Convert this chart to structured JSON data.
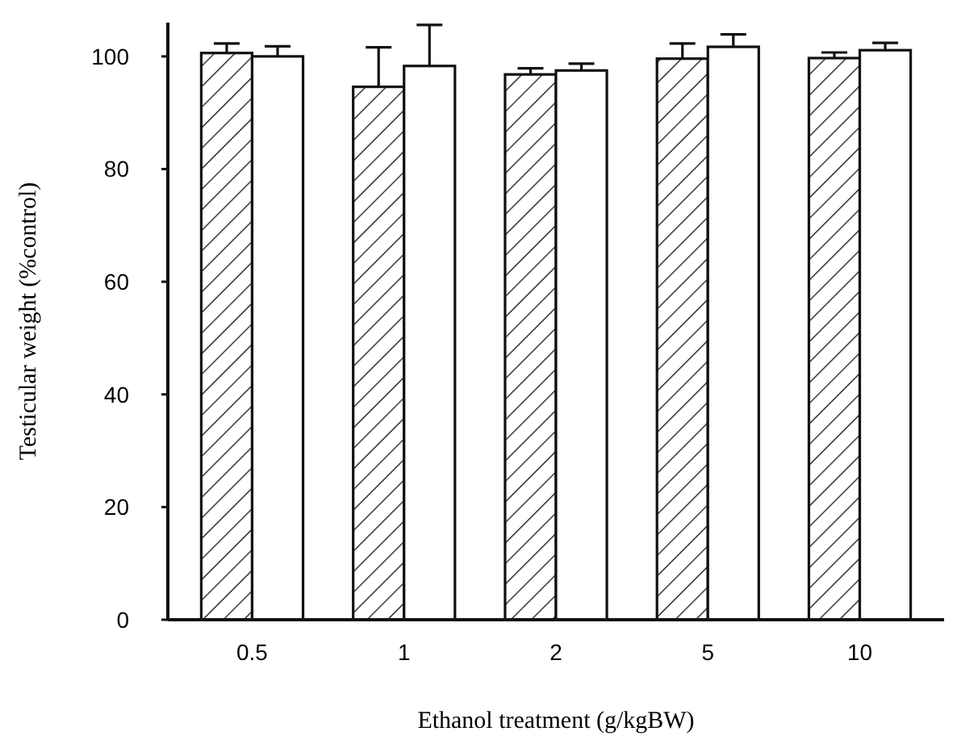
{
  "chart_data": {
    "type": "bar",
    "xlabel": "Ethanol treatment (g/kgBW)",
    "ylabel": "Testicular weight (%control)",
    "categories": [
      "0.5",
      "1",
      "2",
      "5",
      "10"
    ],
    "series": [
      {
        "color": "#111111",
        "values": [
          100.6,
          94.6,
          96.8,
          99.6,
          99.7
        ],
        "errors": [
          1.7,
          7,
          1.1,
          2.7,
          1.0
        ]
      },
      {
        "color": "#ffffff",
        "values": [
          100,
          98.3,
          97.5,
          101.7,
          101.1
        ],
        "errors": [
          1.8,
          7.3,
          1.2,
          2.2,
          1.3
        ]
      }
    ],
    "ylim": [
      0,
      106
    ],
    "yticks": [
      0,
      20,
      40,
      60,
      80,
      100
    ],
    "grid": false
  }
}
